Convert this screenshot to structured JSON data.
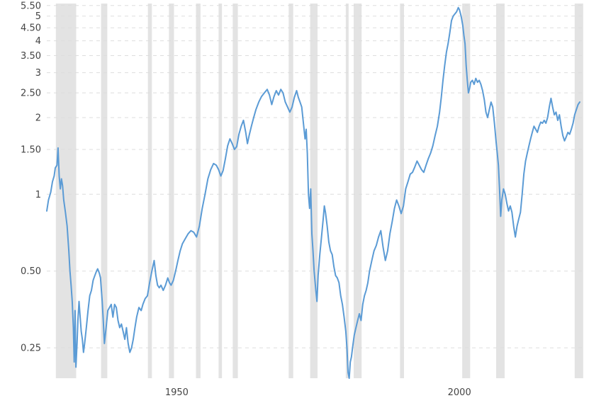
{
  "chart_data": {
    "type": "line",
    "scale": "log",
    "ylim": [
      0.19,
      5.6
    ],
    "xlim": [
      1927.0,
      2022.3
    ],
    "y_ticks": [
      "0.25",
      "0.50",
      "1",
      "1.50",
      "2",
      "2.50",
      "3",
      "3.50",
      "4",
      "4.50",
      "5",
      "5.50"
    ],
    "x_ticks": [
      "1950",
      "2000"
    ],
    "grid": true,
    "colors": {
      "line": "#5b9bd5",
      "shading": "#e3e3e3",
      "grid": "#dddddd",
      "text": "#444444"
    },
    "shaded_periods": [
      [
        1928.6,
        1932.2
      ],
      [
        1936.6,
        1937.7
      ],
      [
        1944.9,
        1945.6
      ],
      [
        1948.6,
        1949.5
      ],
      [
        1953.4,
        1954.2
      ],
      [
        1957.4,
        1958.0
      ],
      [
        1959.9,
        1960.8
      ],
      [
        1969.8,
        1970.6
      ],
      [
        1973.6,
        1974.9
      ],
      [
        1979.9,
        1980.4
      ],
      [
        1981.3,
        1982.7
      ],
      [
        1989.5,
        1990.2
      ],
      [
        2000.5,
        2001.9
      ],
      [
        2006.5,
        2008.0
      ],
      [
        2020.4,
        2021.9
      ]
    ],
    "series": [
      {
        "values": [
          [
            1927.0,
            0.86
          ],
          [
            1927.3,
            0.95
          ],
          [
            1927.7,
            1.02
          ],
          [
            1928.0,
            1.12
          ],
          [
            1928.3,
            1.18
          ],
          [
            1928.5,
            1.27
          ],
          [
            1928.8,
            1.3
          ],
          [
            1929.0,
            1.52
          ],
          [
            1929.2,
            1.18
          ],
          [
            1929.4,
            1.05
          ],
          [
            1929.6,
            1.15
          ],
          [
            1929.8,
            1.08
          ],
          [
            1930.0,
            0.95
          ],
          [
            1930.3,
            0.85
          ],
          [
            1930.6,
            0.75
          ],
          [
            1930.9,
            0.6
          ],
          [
            1931.1,
            0.5
          ],
          [
            1931.3,
            0.44
          ],
          [
            1931.5,
            0.38
          ],
          [
            1931.7,
            0.3
          ],
          [
            1931.85,
            0.22
          ],
          [
            1932.0,
            0.35
          ],
          [
            1932.15,
            0.21
          ],
          [
            1932.35,
            0.26
          ],
          [
            1932.5,
            0.32
          ],
          [
            1932.7,
            0.38
          ],
          [
            1932.9,
            0.33
          ],
          [
            1933.1,
            0.29
          ],
          [
            1933.3,
            0.27
          ],
          [
            1933.5,
            0.24
          ],
          [
            1933.7,
            0.26
          ],
          [
            1934.0,
            0.3
          ],
          [
            1934.3,
            0.35
          ],
          [
            1934.6,
            0.4
          ],
          [
            1934.9,
            0.42
          ],
          [
            1935.2,
            0.46
          ],
          [
            1935.5,
            0.48
          ],
          [
            1935.8,
            0.5
          ],
          [
            1936.0,
            0.51
          ],
          [
            1936.3,
            0.49
          ],
          [
            1936.5,
            0.47
          ],
          [
            1936.8,
            0.38
          ],
          [
            1937.0,
            0.32
          ],
          [
            1937.2,
            0.26
          ],
          [
            1937.5,
            0.3
          ],
          [
            1937.8,
            0.35
          ],
          [
            1938.1,
            0.36
          ],
          [
            1938.4,
            0.37
          ],
          [
            1938.7,
            0.33
          ],
          [
            1939.0,
            0.37
          ],
          [
            1939.3,
            0.36
          ],
          [
            1939.6,
            0.32
          ],
          [
            1939.9,
            0.3
          ],
          [
            1940.2,
            0.31
          ],
          [
            1940.5,
            0.29
          ],
          [
            1940.8,
            0.27
          ],
          [
            1941.1,
            0.3
          ],
          [
            1941.4,
            0.26
          ],
          [
            1941.7,
            0.24
          ],
          [
            1942.0,
            0.25
          ],
          [
            1942.3,
            0.27
          ],
          [
            1942.6,
            0.3
          ],
          [
            1942.9,
            0.33
          ],
          [
            1943.3,
            0.36
          ],
          [
            1943.7,
            0.35
          ],
          [
            1944.0,
            0.37
          ],
          [
            1944.4,
            0.39
          ],
          [
            1944.8,
            0.4
          ],
          [
            1945.2,
            0.45
          ],
          [
            1945.6,
            0.5
          ],
          [
            1946.0,
            0.55
          ],
          [
            1946.3,
            0.48
          ],
          [
            1946.6,
            0.44
          ],
          [
            1946.9,
            0.43
          ],
          [
            1947.2,
            0.44
          ],
          [
            1947.6,
            0.42
          ],
          [
            1948.0,
            0.44
          ],
          [
            1948.4,
            0.47
          ],
          [
            1948.7,
            0.45
          ],
          [
            1949.0,
            0.44
          ],
          [
            1949.4,
            0.46
          ],
          [
            1949.8,
            0.5
          ],
          [
            1950.2,
            0.55
          ],
          [
            1950.6,
            0.6
          ],
          [
            1951.0,
            0.64
          ],
          [
            1951.5,
            0.67
          ],
          [
            1952.0,
            0.7
          ],
          [
            1952.5,
            0.72
          ],
          [
            1953.0,
            0.71
          ],
          [
            1953.5,
            0.68
          ],
          [
            1954.0,
            0.75
          ],
          [
            1954.5,
            0.88
          ],
          [
            1955.0,
            1.0
          ],
          [
            1955.5,
            1.15
          ],
          [
            1956.0,
            1.25
          ],
          [
            1956.5,
            1.32
          ],
          [
            1957.0,
            1.3
          ],
          [
            1957.4,
            1.25
          ],
          [
            1957.8,
            1.18
          ],
          [
            1958.2,
            1.24
          ],
          [
            1958.6,
            1.38
          ],
          [
            1959.0,
            1.55
          ],
          [
            1959.4,
            1.65
          ],
          [
            1959.8,
            1.58
          ],
          [
            1960.2,
            1.5
          ],
          [
            1960.6,
            1.54
          ],
          [
            1961.0,
            1.72
          ],
          [
            1961.4,
            1.85
          ],
          [
            1961.8,
            1.95
          ],
          [
            1962.2,
            1.75
          ],
          [
            1962.5,
            1.58
          ],
          [
            1962.8,
            1.7
          ],
          [
            1963.2,
            1.85
          ],
          [
            1963.6,
            2.0
          ],
          [
            1964.0,
            2.15
          ],
          [
            1964.5,
            2.3
          ],
          [
            1965.0,
            2.42
          ],
          [
            1965.5,
            2.5
          ],
          [
            1966.0,
            2.58
          ],
          [
            1966.4,
            2.45
          ],
          [
            1966.8,
            2.25
          ],
          [
            1967.2,
            2.42
          ],
          [
            1967.6,
            2.55
          ],
          [
            1968.0,
            2.45
          ],
          [
            1968.4,
            2.58
          ],
          [
            1968.8,
            2.5
          ],
          [
            1969.2,
            2.3
          ],
          [
            1969.6,
            2.2
          ],
          [
            1970.0,
            2.1
          ],
          [
            1970.4,
            2.2
          ],
          [
            1970.8,
            2.4
          ],
          [
            1971.2,
            2.55
          ],
          [
            1971.5,
            2.4
          ],
          [
            1971.8,
            2.3
          ],
          [
            1972.1,
            2.2
          ],
          [
            1972.4,
            1.9
          ],
          [
            1972.7,
            1.65
          ],
          [
            1972.9,
            1.8
          ],
          [
            1973.1,
            1.45
          ],
          [
            1973.3,
            1.0
          ],
          [
            1973.5,
            0.88
          ],
          [
            1973.7,
            1.05
          ],
          [
            1973.9,
            0.7
          ],
          [
            1974.1,
            0.6
          ],
          [
            1974.3,
            0.5
          ],
          [
            1974.6,
            0.42
          ],
          [
            1974.8,
            0.38
          ],
          [
            1975.0,
            0.48
          ],
          [
            1975.3,
            0.58
          ],
          [
            1975.6,
            0.68
          ],
          [
            1975.9,
            0.8
          ],
          [
            1976.1,
            0.9
          ],
          [
            1976.3,
            0.85
          ],
          [
            1976.6,
            0.75
          ],
          [
            1976.9,
            0.65
          ],
          [
            1977.2,
            0.6
          ],
          [
            1977.5,
            0.58
          ],
          [
            1977.8,
            0.52
          ],
          [
            1978.1,
            0.48
          ],
          [
            1978.4,
            0.47
          ],
          [
            1978.7,
            0.45
          ],
          [
            1979.0,
            0.4
          ],
          [
            1979.3,
            0.37
          ],
          [
            1979.6,
            0.33
          ],
          [
            1979.9,
            0.29
          ],
          [
            1980.1,
            0.25
          ],
          [
            1980.3,
            0.2
          ],
          [
            1980.5,
            0.19
          ],
          [
            1980.7,
            0.22
          ],
          [
            1980.9,
            0.23
          ],
          [
            1981.1,
            0.25
          ],
          [
            1981.4,
            0.28
          ],
          [
            1981.7,
            0.3
          ],
          [
            1982.0,
            0.32
          ],
          [
            1982.3,
            0.34
          ],
          [
            1982.6,
            0.32
          ],
          [
            1982.9,
            0.37
          ],
          [
            1983.2,
            0.4
          ],
          [
            1983.5,
            0.42
          ],
          [
            1983.8,
            0.45
          ],
          [
            1984.1,
            0.5
          ],
          [
            1984.5,
            0.55
          ],
          [
            1984.9,
            0.6
          ],
          [
            1985.3,
            0.63
          ],
          [
            1985.7,
            0.68
          ],
          [
            1986.1,
            0.72
          ],
          [
            1986.5,
            0.62
          ],
          [
            1986.9,
            0.55
          ],
          [
            1987.3,
            0.6
          ],
          [
            1987.7,
            0.7
          ],
          [
            1988.1,
            0.78
          ],
          [
            1988.5,
            0.88
          ],
          [
            1988.9,
            0.95
          ],
          [
            1989.3,
            0.9
          ],
          [
            1989.7,
            0.84
          ],
          [
            1990.1,
            0.9
          ],
          [
            1990.5,
            1.05
          ],
          [
            1990.9,
            1.12
          ],
          [
            1991.3,
            1.2
          ],
          [
            1991.7,
            1.22
          ],
          [
            1992.1,
            1.28
          ],
          [
            1992.5,
            1.35
          ],
          [
            1992.9,
            1.3
          ],
          [
            1993.3,
            1.25
          ],
          [
            1993.7,
            1.22
          ],
          [
            1994.1,
            1.3
          ],
          [
            1994.5,
            1.38
          ],
          [
            1994.9,
            1.45
          ],
          [
            1995.3,
            1.55
          ],
          [
            1995.7,
            1.7
          ],
          [
            1996.1,
            1.85
          ],
          [
            1996.5,
            2.1
          ],
          [
            1996.8,
            2.4
          ],
          [
            1997.1,
            2.8
          ],
          [
            1997.4,
            3.2
          ],
          [
            1997.7,
            3.6
          ],
          [
            1998.0,
            3.9
          ],
          [
            1998.3,
            4.3
          ],
          [
            1998.6,
            4.8
          ],
          [
            1998.9,
            5.0
          ],
          [
            1999.2,
            5.1
          ],
          [
            1999.5,
            5.2
          ],
          [
            1999.8,
            5.4
          ],
          [
            2000.0,
            5.3
          ],
          [
            2000.3,
            5.0
          ],
          [
            2000.6,
            4.6
          ],
          [
            2000.8,
            4.2
          ],
          [
            2001.0,
            3.9
          ],
          [
            2001.2,
            3.2
          ],
          [
            2001.4,
            2.8
          ],
          [
            2001.6,
            2.5
          ],
          [
            2001.8,
            2.6
          ],
          [
            2002.0,
            2.75
          ],
          [
            2002.3,
            2.8
          ],
          [
            2002.6,
            2.7
          ],
          [
            2002.9,
            2.85
          ],
          [
            2003.2,
            2.75
          ],
          [
            2003.5,
            2.8
          ],
          [
            2003.8,
            2.7
          ],
          [
            2004.1,
            2.55
          ],
          [
            2004.4,
            2.35
          ],
          [
            2004.7,
            2.1
          ],
          [
            2005.0,
            2.0
          ],
          [
            2005.3,
            2.15
          ],
          [
            2005.6,
            2.3
          ],
          [
            2005.9,
            2.2
          ],
          [
            2006.2,
            1.9
          ],
          [
            2006.5,
            1.6
          ],
          [
            2006.7,
            1.45
          ],
          [
            2006.9,
            1.3
          ],
          [
            2007.1,
            1.05
          ],
          [
            2007.3,
            0.82
          ],
          [
            2007.5,
            0.95
          ],
          [
            2007.8,
            1.05
          ],
          [
            2008.1,
            1.0
          ],
          [
            2008.4,
            0.92
          ],
          [
            2008.7,
            0.86
          ],
          [
            2009.0,
            0.9
          ],
          [
            2009.3,
            0.85
          ],
          [
            2009.6,
            0.75
          ],
          [
            2009.9,
            0.68
          ],
          [
            2010.2,
            0.75
          ],
          [
            2010.5,
            0.8
          ],
          [
            2010.8,
            0.85
          ],
          [
            2011.1,
            1.0
          ],
          [
            2011.4,
            1.2
          ],
          [
            2011.7,
            1.35
          ],
          [
            2012.0,
            1.45
          ],
          [
            2012.3,
            1.55
          ],
          [
            2012.6,
            1.65
          ],
          [
            2012.9,
            1.75
          ],
          [
            2013.2,
            1.85
          ],
          [
            2013.5,
            1.8
          ],
          [
            2013.8,
            1.75
          ],
          [
            2014.1,
            1.85
          ],
          [
            2014.4,
            1.92
          ],
          [
            2014.7,
            1.9
          ],
          [
            2015.0,
            1.95
          ],
          [
            2015.3,
            1.9
          ],
          [
            2015.6,
            2.0
          ],
          [
            2015.9,
            2.2
          ],
          [
            2016.2,
            2.38
          ],
          [
            2016.5,
            2.2
          ],
          [
            2016.8,
            2.05
          ],
          [
            2017.1,
            2.1
          ],
          [
            2017.4,
            1.95
          ],
          [
            2017.7,
            2.05
          ],
          [
            2018.0,
            1.85
          ],
          [
            2018.3,
            1.7
          ],
          [
            2018.6,
            1.62
          ],
          [
            2018.9,
            1.68
          ],
          [
            2019.2,
            1.75
          ],
          [
            2019.5,
            1.72
          ],
          [
            2019.8,
            1.8
          ],
          [
            2020.1,
            1.9
          ],
          [
            2020.4,
            2.05
          ],
          [
            2020.7,
            2.15
          ],
          [
            2021.0,
            2.25
          ],
          [
            2021.3,
            2.3
          ]
        ]
      }
    ]
  }
}
